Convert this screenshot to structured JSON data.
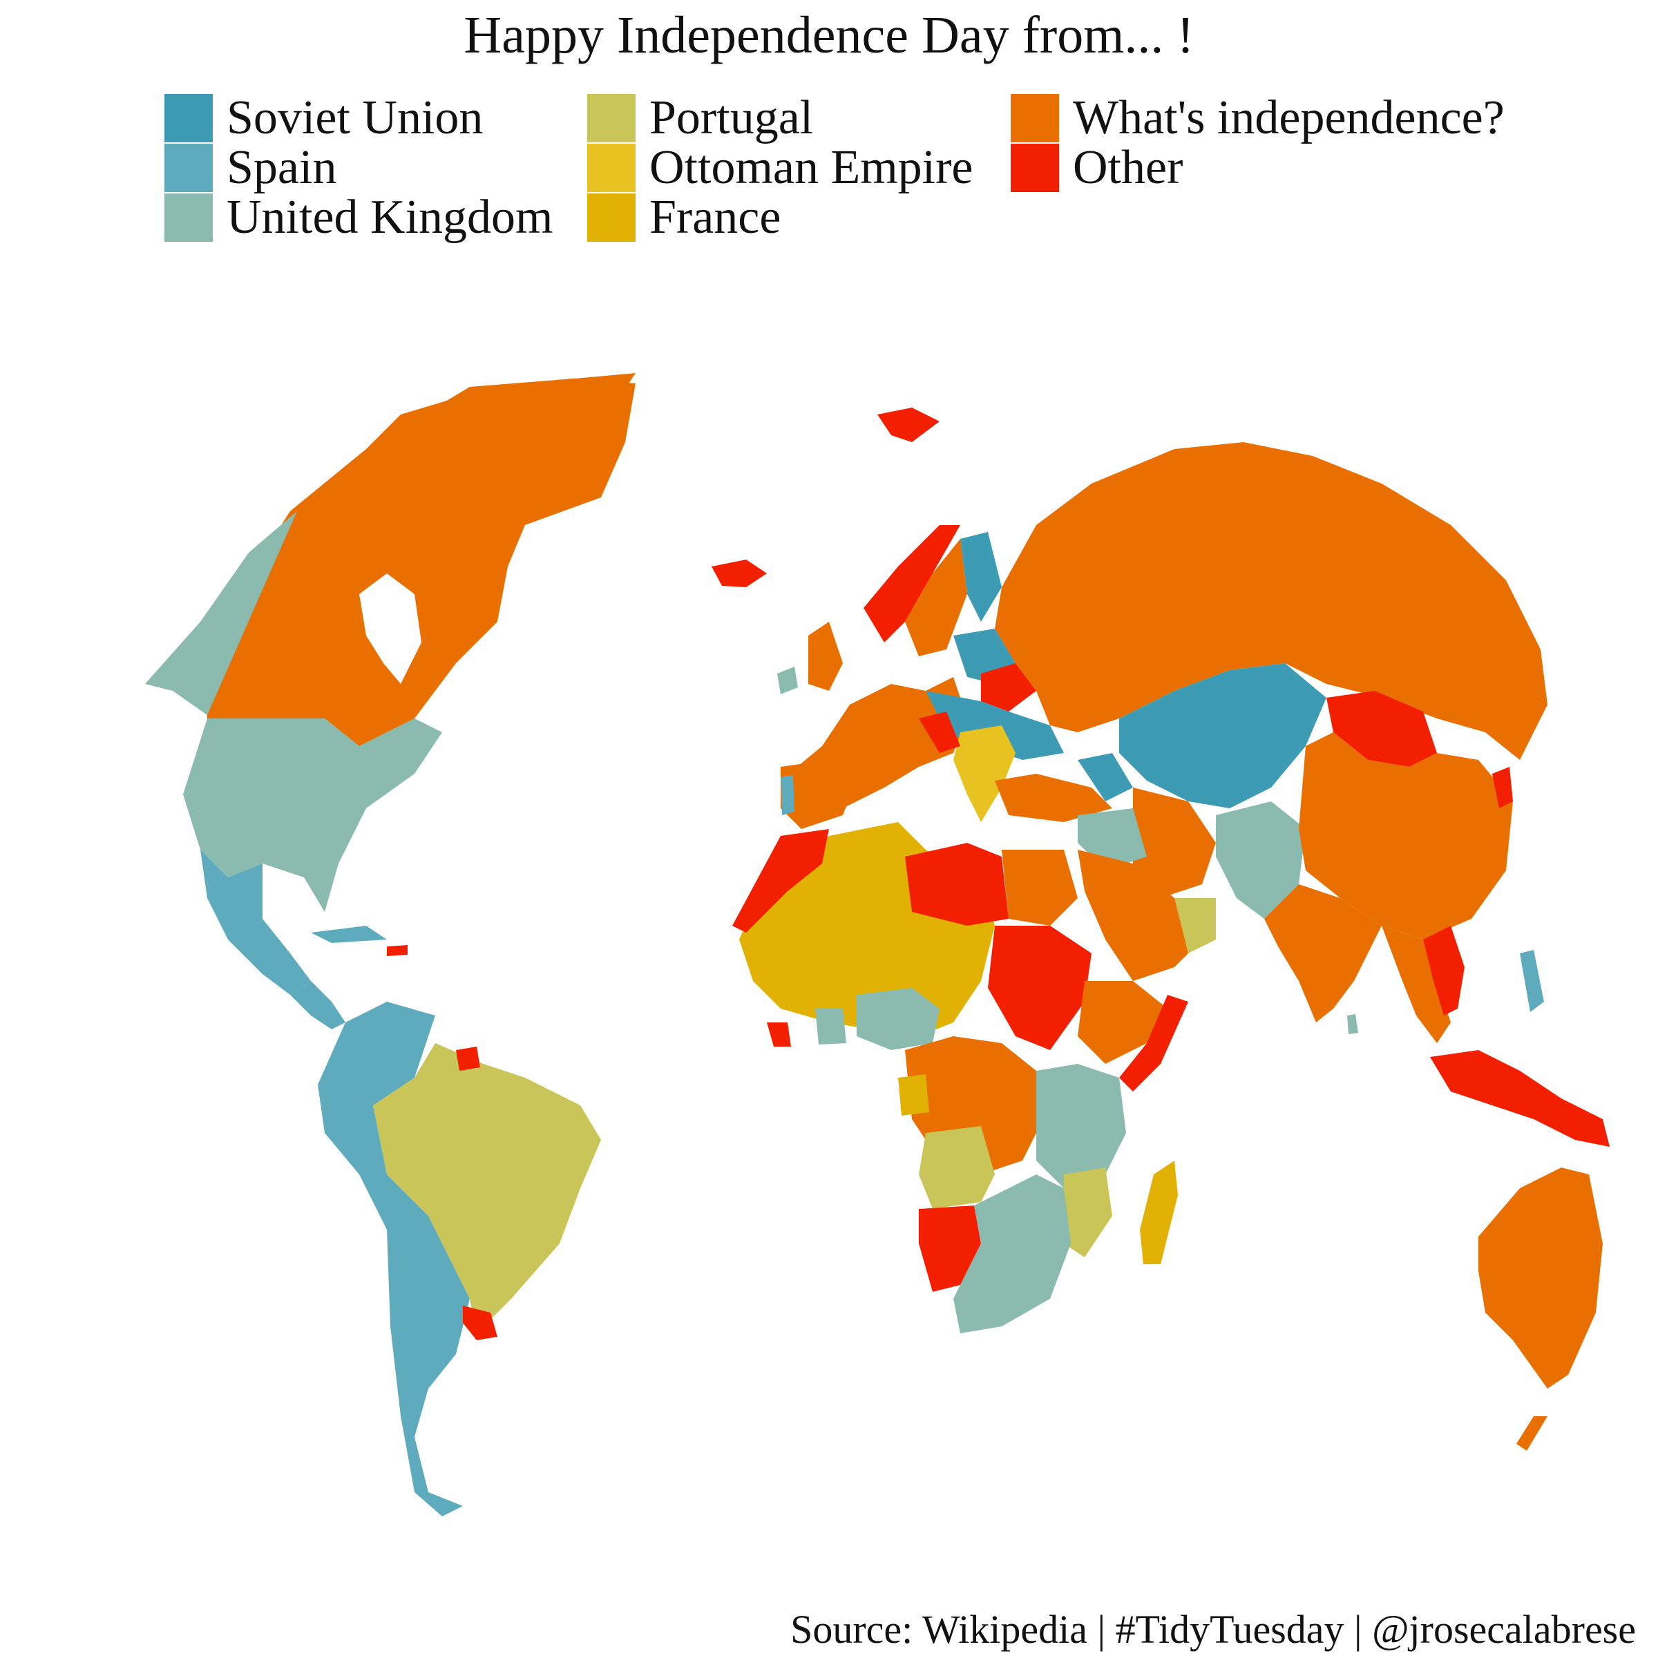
{
  "title": "Happy Independence Day from... !",
  "legend": [
    {
      "label": "Soviet Union",
      "color": "#3D9BB4"
    },
    {
      "label": "Spain",
      "color": "#5EABBD"
    },
    {
      "label": "United Kingdom",
      "color": "#8BBAAE"
    },
    {
      "label": "Portugal",
      "color": "#CAC558"
    },
    {
      "label": "Ottoman Empire",
      "color": "#E8C220"
    },
    {
      "label": "France",
      "color": "#E1B104"
    },
    {
      "label": "What's independence?",
      "color": "#E86F00"
    },
    {
      "label": "Other",
      "color": "#F21F00"
    }
  ],
  "caption": "Source: Wikipedia | #TidyTuesday | @jrosecalabrese"
}
